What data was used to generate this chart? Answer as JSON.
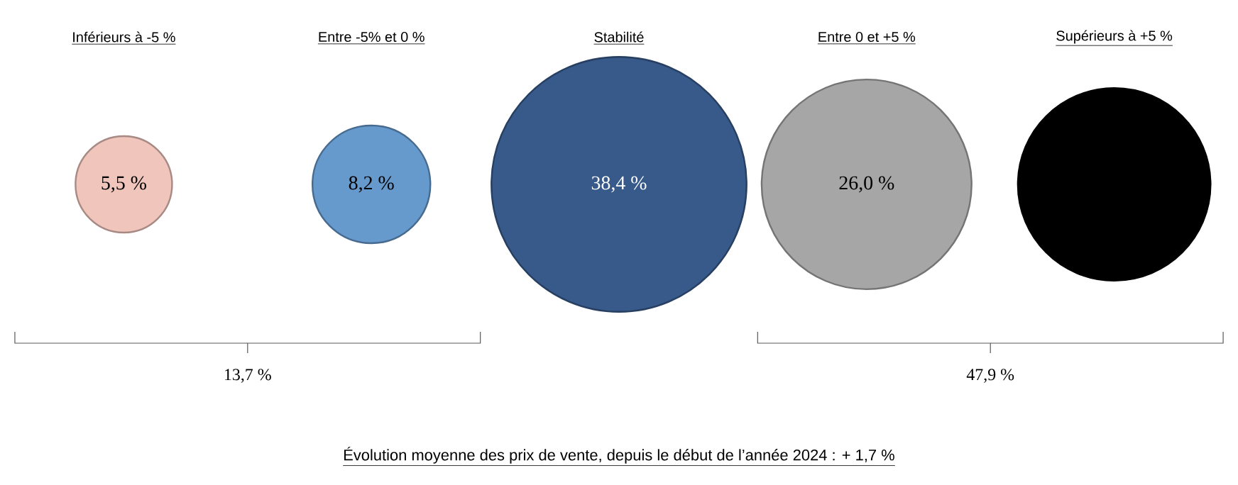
{
  "chart_data": {
    "type": "other",
    "categories": [
      "Inférieurs à -5 %",
      "Entre -5% et 0 %",
      "Stabilité",
      "Entre 0 et +5 %",
      "Supérieurs à +5 %"
    ],
    "values": [
      5.5,
      8.2,
      38.4,
      26.0,
      null
    ],
    "value_labels": [
      "5,5 %",
      "8,2 %",
      "38,4 %",
      "26,0 %",
      null
    ],
    "colors": [
      "#f0c5bc",
      "#6699cc",
      "#385a8a",
      "#a6a6a6",
      "#000000"
    ],
    "annotations": [
      "13,7 %",
      "47,9 %",
      "Évolution moyenne des prix de vente, depuis le début de l’année 2024 : + 1,7 %"
    ]
  }
}
